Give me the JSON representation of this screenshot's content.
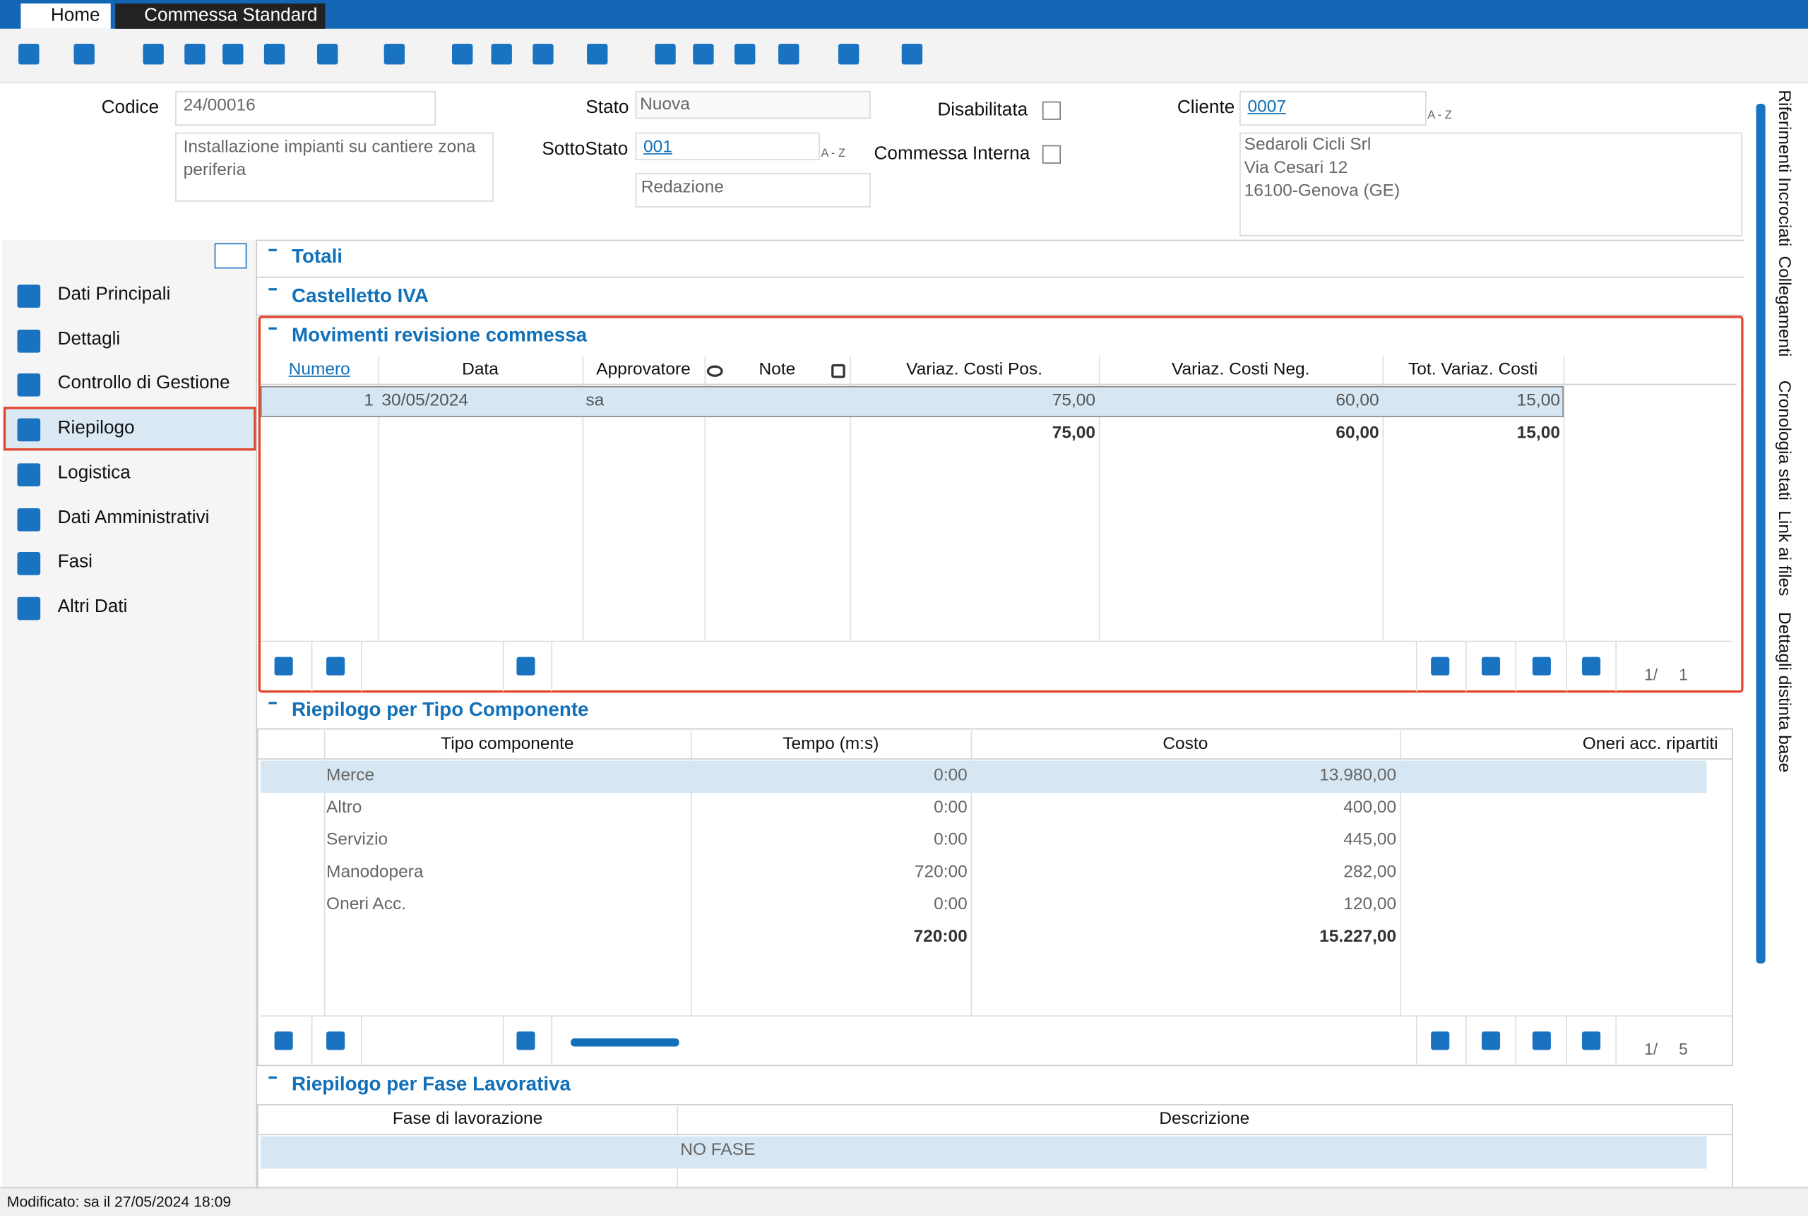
{
  "tabs": [
    "Home",
    "Commessa Standard"
  ],
  "form": {
    "codice_label": "Codice",
    "codice": "24/00016",
    "descrizione": "Installazione impianti su cantiere zona periferia",
    "stato_label": "Stato",
    "stato": "Nuova",
    "sottostato_label": "SottoStato",
    "sottostato": "001",
    "sottostato_desc": "Redazione",
    "disabilitata": "Disabilitata",
    "interna": "Commessa Interna",
    "cliente_label": "Cliente",
    "cliente": "0007",
    "az": "A - Z",
    "cliente_address": [
      "Sedaroli Cicli Srl",
      "Via Cesari 12",
      "16100-Genova (GE)"
    ]
  },
  "nav": [
    "Dati Principali",
    "Dettagli",
    "Controllo di Gestione",
    "Riepilogo",
    "Logistica",
    "Dati Amministrativi",
    "Fasi",
    "Altri Dati"
  ],
  "sections": {
    "totali": "Totali",
    "iva": "Castelletto IVA",
    "movimenti": "Movimenti revisione commessa",
    "tipo": "Riepilogo per Tipo Componente",
    "fase": "Riepilogo per Fase Lavorativa"
  },
  "movimenti": {
    "columns": [
      "Numero",
      "Data",
      "Approvatore",
      "Note",
      "Variaz. Costi Pos.",
      "Variaz. Costi Neg.",
      "Tot. Variaz. Costi"
    ],
    "rows": [
      {
        "numero": "1",
        "data": "30/05/2024",
        "approvatore": "sa",
        "pos": "75,00",
        "neg": "60,00",
        "tot": "15,00"
      }
    ],
    "totals": {
      "pos": "75,00",
      "neg": "60,00",
      "tot": "15,00"
    },
    "pager": {
      "page": "1/",
      "pages": "1"
    }
  },
  "tipo": {
    "columns": [
      "Tipo componente",
      "Tempo (m:s)",
      "Costo",
      "Oneri acc. ripartiti"
    ],
    "rows": [
      {
        "tipo": "Merce",
        "tempo": "0:00",
        "costo": "13.980,00"
      },
      {
        "tipo": "Altro",
        "tempo": "0:00",
        "costo": "400,00"
      },
      {
        "tipo": "Servizio",
        "tempo": "0:00",
        "costo": "445,00"
      },
      {
        "tipo": "Manodopera",
        "tempo": "720:00",
        "costo": "282,00"
      },
      {
        "tipo": "Oneri Acc.",
        "tempo": "0:00",
        "costo": "120,00"
      }
    ],
    "totals": {
      "tempo": "720:00",
      "costo": "15.227,00"
    },
    "pager": {
      "page": "1/",
      "pages": "5"
    }
  },
  "fase": {
    "columns": [
      "Fase di lavorazione",
      "Descrizione"
    ],
    "rows": [
      {
        "descrizione": "NO FASE"
      }
    ]
  },
  "side_tabs": [
    "Riferimenti Incrociati",
    "Collegamenti",
    "Cronologia stati",
    "Link ai files",
    "Dettagli distinta base"
  ],
  "status": "Modificato: sa il 27/05/2024 18:09"
}
